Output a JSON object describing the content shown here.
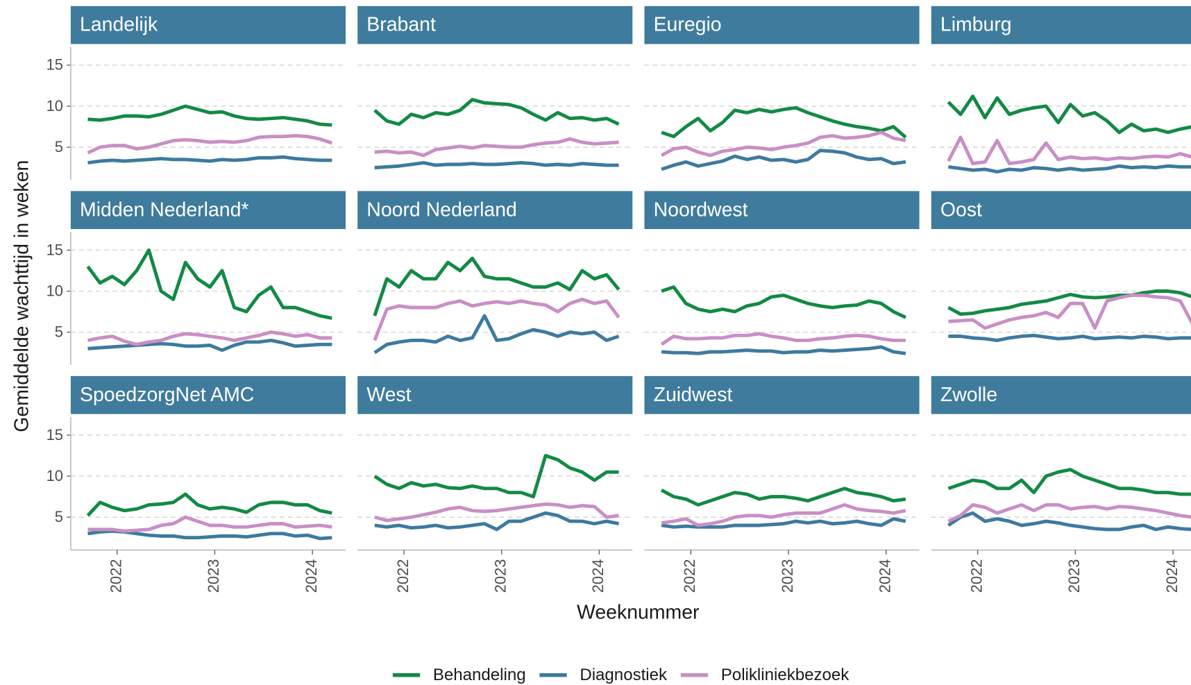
{
  "chart_data": {
    "type": "line",
    "ylabel": "Gemiddelde wachttijd in weken",
    "xlabel": "Weeknummer",
    "x": [
      2021.7,
      2021.825,
      2021.95,
      2022.075,
      2022.2,
      2022.325,
      2022.45,
      2022.575,
      2022.7,
      2022.825,
      2022.95,
      2023.075,
      2023.2,
      2023.325,
      2023.45,
      2023.575,
      2023.7,
      2023.825,
      2023.95,
      2024.075,
      2024.2
    ],
    "xlim": [
      2021.525,
      2024.34
    ],
    "xticks": [
      2022,
      2023,
      2024
    ],
    "ylim": [
      1,
      17.2
    ],
    "yticks": [
      5,
      10,
      15
    ],
    "grid": true,
    "legend": "bottom",
    "series": [
      {
        "name": "Behandeling",
        "color": "#138a44"
      },
      {
        "name": "Diagnostiek",
        "color": "#3d7a9f"
      },
      {
        "name": "Polikliniekbezoek",
        "color": "#c98fc5"
      }
    ],
    "facets": [
      {
        "title": "Landelijk",
        "values": [
          [
            8.4,
            8.3,
            8.5,
            8.8,
            8.8,
            8.7,
            9.0,
            9.5,
            10.0,
            9.6,
            9.2,
            9.3,
            8.8,
            8.5,
            8.4,
            8.5,
            8.6,
            8.4,
            8.2,
            7.8,
            7.7
          ],
          [
            3.1,
            3.3,
            3.4,
            3.3,
            3.4,
            3.5,
            3.6,
            3.5,
            3.5,
            3.4,
            3.3,
            3.5,
            3.4,
            3.5,
            3.7,
            3.7,
            3.8,
            3.6,
            3.5,
            3.4,
            3.4
          ],
          [
            4.3,
            5.0,
            5.2,
            5.2,
            4.8,
            5.0,
            5.4,
            5.8,
            5.9,
            5.8,
            5.6,
            5.7,
            5.6,
            5.8,
            6.2,
            6.3,
            6.3,
            6.4,
            6.3,
            6.0,
            5.5
          ]
        ]
      },
      {
        "title": "Brabant",
        "values": [
          [
            9.5,
            8.2,
            7.8,
            9.0,
            8.6,
            9.2,
            9.0,
            9.5,
            10.8,
            10.4,
            10.3,
            10.2,
            9.8,
            9.0,
            8.3,
            9.2,
            8.5,
            8.6,
            8.3,
            8.5,
            7.8
          ],
          [
            2.5,
            2.6,
            2.7,
            2.9,
            3.1,
            2.8,
            2.9,
            2.9,
            3.0,
            2.9,
            2.9,
            3.0,
            3.1,
            3.0,
            2.8,
            2.9,
            2.8,
            3.0,
            2.9,
            2.8,
            2.8
          ],
          [
            4.4,
            4.5,
            4.3,
            4.4,
            4.0,
            4.7,
            4.9,
            5.1,
            4.9,
            5.2,
            5.1,
            5.0,
            5.0,
            5.3,
            5.5,
            5.6,
            6.0,
            5.6,
            5.4,
            5.5,
            5.6
          ]
        ]
      },
      {
        "title": "Euregio",
        "values": [
          [
            6.8,
            6.3,
            7.5,
            8.5,
            7.0,
            8.0,
            9.5,
            9.2,
            9.6,
            9.3,
            9.6,
            9.8,
            9.2,
            8.7,
            8.2,
            7.8,
            7.5,
            7.3,
            7.0,
            7.5,
            6.2
          ],
          [
            2.3,
            2.8,
            3.2,
            2.7,
            3.0,
            3.3,
            3.9,
            3.5,
            3.8,
            3.4,
            3.5,
            3.2,
            3.5,
            4.6,
            4.5,
            4.3,
            3.8,
            3.5,
            3.6,
            3.0,
            3.2
          ],
          [
            4.0,
            4.8,
            5.0,
            4.4,
            4.0,
            4.5,
            4.7,
            5.0,
            4.9,
            4.7,
            5.0,
            5.2,
            5.5,
            6.2,
            6.4,
            6.1,
            6.2,
            6.4,
            6.8,
            6.1,
            5.8
          ]
        ]
      },
      {
        "title": "Limburg",
        "values": [
          [
            10.5,
            9.0,
            11.2,
            8.6,
            11.0,
            9.0,
            9.5,
            9.8,
            10.0,
            8.0,
            10.2,
            8.8,
            9.2,
            8.2,
            6.8,
            7.8,
            7.0,
            7.2,
            6.8,
            7.2,
            7.5
          ],
          [
            2.6,
            2.4,
            2.2,
            2.3,
            2.0,
            2.3,
            2.2,
            2.5,
            2.4,
            2.2,
            2.4,
            2.2,
            2.3,
            2.4,
            2.7,
            2.5,
            2.6,
            2.5,
            2.7,
            2.6,
            2.6
          ],
          [
            3.3,
            6.2,
            3.0,
            3.2,
            5.8,
            3.0,
            3.2,
            3.5,
            5.5,
            3.5,
            3.8,
            3.6,
            3.7,
            3.5,
            3.7,
            3.6,
            3.8,
            3.9,
            3.8,
            4.2,
            3.8
          ]
        ]
      },
      {
        "title": "Midden Nederland*",
        "values": [
          [
            13.0,
            11.0,
            11.8,
            10.8,
            12.5,
            15.0,
            10.0,
            9.0,
            13.5,
            11.5,
            10.5,
            12.5,
            8.0,
            7.5,
            9.5,
            10.5,
            8.0,
            8.0,
            7.5,
            7.0,
            6.7
          ],
          [
            3.0,
            3.1,
            3.2,
            3.3,
            3.4,
            3.5,
            3.6,
            3.5,
            3.3,
            3.3,
            3.4,
            2.8,
            3.4,
            3.8,
            3.8,
            4.0,
            3.7,
            3.3,
            3.4,
            3.5,
            3.5
          ],
          [
            4.0,
            4.3,
            4.5,
            3.9,
            3.5,
            3.8,
            4.0,
            4.5,
            4.8,
            4.7,
            4.5,
            4.3,
            4.0,
            4.3,
            4.6,
            5.0,
            4.8,
            4.5,
            4.7,
            4.3,
            4.3
          ]
        ]
      },
      {
        "title": "Noord Nederland",
        "values": [
          [
            7.0,
            11.5,
            10.5,
            12.5,
            11.5,
            11.5,
            13.5,
            12.5,
            14.0,
            11.8,
            11.5,
            11.5,
            11.0,
            10.5,
            10.5,
            11.0,
            10.2,
            12.5,
            11.5,
            12.0,
            10.2
          ],
          [
            2.5,
            3.5,
            3.8,
            4.0,
            4.0,
            3.8,
            4.5,
            4.0,
            4.3,
            7.0,
            4.0,
            4.2,
            4.8,
            5.3,
            5.0,
            4.5,
            5.0,
            4.8,
            5.0,
            4.0,
            4.5
          ],
          [
            4.0,
            7.8,
            8.2,
            8.0,
            8.0,
            8.0,
            8.5,
            8.8,
            8.2,
            8.5,
            8.7,
            8.5,
            8.8,
            8.5,
            8.3,
            7.5,
            8.5,
            9.0,
            8.5,
            8.8,
            6.8
          ]
        ]
      },
      {
        "title": "Noordwest",
        "values": [
          [
            10.0,
            10.5,
            8.5,
            7.8,
            7.5,
            7.8,
            7.5,
            8.2,
            8.5,
            9.3,
            9.5,
            9.0,
            8.5,
            8.2,
            8.0,
            8.2,
            8.3,
            8.8,
            8.5,
            7.5,
            6.8
          ],
          [
            2.6,
            2.5,
            2.5,
            2.4,
            2.6,
            2.6,
            2.7,
            2.8,
            2.7,
            2.7,
            2.5,
            2.6,
            2.6,
            2.8,
            2.7,
            2.8,
            2.9,
            3.0,
            3.2,
            2.6,
            2.4
          ],
          [
            3.5,
            4.5,
            4.2,
            4.2,
            4.3,
            4.3,
            4.6,
            4.6,
            4.8,
            4.5,
            4.3,
            4.0,
            4.0,
            4.2,
            4.3,
            4.5,
            4.6,
            4.5,
            4.2,
            4.0,
            4.0
          ]
        ]
      },
      {
        "title": "Oost",
        "values": [
          [
            8.0,
            7.2,
            7.3,
            7.6,
            7.8,
            8.0,
            8.4,
            8.6,
            8.8,
            9.2,
            9.6,
            9.3,
            9.2,
            9.3,
            9.5,
            9.5,
            9.8,
            10.0,
            10.0,
            9.8,
            9.3
          ],
          [
            4.5,
            4.5,
            4.3,
            4.2,
            4.0,
            4.3,
            4.5,
            4.6,
            4.4,
            4.2,
            4.3,
            4.5,
            4.2,
            4.3,
            4.4,
            4.3,
            4.5,
            4.4,
            4.2,
            4.3,
            4.3
          ],
          [
            6.3,
            6.4,
            6.5,
            5.5,
            6.0,
            6.5,
            6.8,
            7.0,
            7.4,
            6.8,
            8.5,
            8.5,
            5.5,
            8.8,
            9.2,
            9.5,
            9.5,
            9.3,
            9.2,
            8.8,
            6.0
          ]
        ]
      },
      {
        "title": "SpoedzorgNet AMC",
        "values": [
          [
            5.2,
            6.8,
            6.2,
            5.8,
            6.0,
            6.5,
            6.6,
            6.8,
            7.8,
            6.5,
            6.0,
            6.2,
            6.0,
            5.6,
            6.5,
            6.8,
            6.8,
            6.5,
            6.5,
            5.8,
            5.5
          ],
          [
            3.0,
            3.2,
            3.3,
            3.2,
            3.0,
            2.8,
            2.7,
            2.7,
            2.5,
            2.5,
            2.6,
            2.7,
            2.7,
            2.6,
            2.8,
            3.0,
            3.0,
            2.7,
            2.8,
            2.4,
            2.5
          ],
          [
            3.5,
            3.5,
            3.5,
            3.3,
            3.4,
            3.5,
            4.0,
            4.2,
            5.0,
            4.5,
            4.0,
            4.0,
            3.8,
            3.8,
            4.0,
            4.2,
            4.2,
            3.8,
            3.9,
            4.0,
            3.8
          ]
        ]
      },
      {
        "title": "West",
        "values": [
          [
            10.0,
            9.0,
            8.5,
            9.2,
            8.8,
            9.0,
            8.6,
            8.5,
            8.8,
            8.5,
            8.5,
            8.0,
            8.0,
            7.5,
            12.5,
            12.0,
            11.0,
            10.5,
            9.5,
            10.5,
            10.5
          ],
          [
            4.0,
            3.8,
            4.0,
            3.7,
            3.8,
            4.0,
            3.7,
            3.8,
            4.0,
            4.2,
            3.5,
            4.5,
            4.5,
            5.0,
            5.5,
            5.2,
            4.5,
            4.5,
            4.2,
            4.5,
            4.2
          ],
          [
            5.0,
            4.6,
            4.8,
            5.0,
            5.3,
            5.6,
            6.0,
            6.2,
            5.8,
            5.7,
            5.8,
            6.0,
            6.2,
            6.4,
            6.6,
            6.5,
            6.2,
            6.4,
            6.3,
            5.0,
            5.2
          ]
        ]
      },
      {
        "title": "Zuidwest",
        "values": [
          [
            8.3,
            7.5,
            7.2,
            6.5,
            7.0,
            7.5,
            8.0,
            7.8,
            7.2,
            7.5,
            7.5,
            7.3,
            7.0,
            7.5,
            8.0,
            8.5,
            8.0,
            7.8,
            7.5,
            7.0,
            7.2
          ],
          [
            4.0,
            3.8,
            3.9,
            3.8,
            3.8,
            3.8,
            4.0,
            4.0,
            4.0,
            4.1,
            4.2,
            4.5,
            4.3,
            4.5,
            4.2,
            4.3,
            4.5,
            4.2,
            4.0,
            4.8,
            4.5
          ],
          [
            4.3,
            4.5,
            4.8,
            4.0,
            4.2,
            4.5,
            5.0,
            5.2,
            5.2,
            5.0,
            5.3,
            5.5,
            5.5,
            5.5,
            6.0,
            6.5,
            6.0,
            5.8,
            5.7,
            5.5,
            5.8
          ]
        ]
      },
      {
        "title": "Zwolle",
        "values": [
          [
            8.5,
            9.0,
            9.5,
            9.3,
            8.5,
            8.5,
            9.5,
            8.0,
            10.0,
            10.5,
            10.8,
            10.0,
            9.5,
            9.0,
            8.5,
            8.5,
            8.3,
            8.0,
            8.0,
            7.8,
            7.8
          ],
          [
            4.0,
            5.0,
            5.5,
            4.5,
            4.8,
            4.5,
            4.0,
            4.2,
            4.5,
            4.3,
            4.0,
            3.8,
            3.6,
            3.5,
            3.5,
            3.8,
            4.0,
            3.5,
            3.8,
            3.6,
            3.5
          ],
          [
            4.5,
            5.2,
            6.5,
            6.2,
            5.5,
            6.0,
            6.5,
            5.8,
            6.5,
            6.5,
            6.0,
            6.2,
            6.3,
            6.0,
            6.3,
            6.2,
            6.0,
            5.8,
            5.5,
            5.2,
            5.0
          ]
        ]
      }
    ]
  }
}
